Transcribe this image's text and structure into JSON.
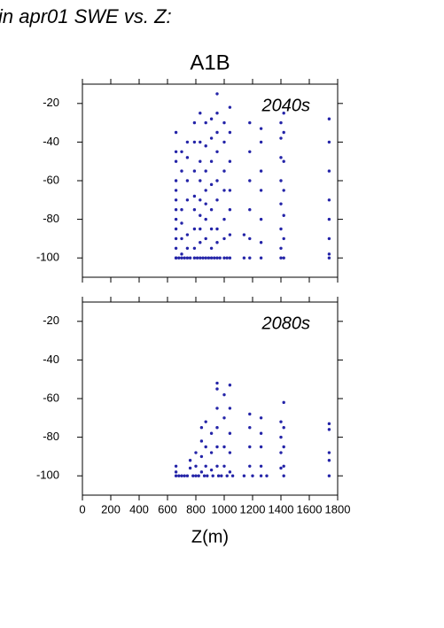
{
  "page_title": "in apr01 SWE vs. Z:",
  "chart_data": [
    {
      "type": "scatter",
      "title": "A1B",
      "annotation": "2040s",
      "color": "#2424a8",
      "xlim": [
        0,
        1800
      ],
      "xticks": [
        0,
        200,
        400,
        600,
        800,
        1000,
        1200,
        1400,
        1600,
        1800
      ],
      "ylim": [
        -110,
        -10
      ],
      "yticks": [
        -20,
        -40,
        -60,
        -80,
        -100
      ],
      "x": [
        660,
        660,
        660,
        660,
        660,
        660,
        660,
        660,
        660,
        660,
        660,
        660,
        660,
        700,
        700,
        700,
        700,
        700,
        700,
        700,
        740,
        740,
        740,
        740,
        740,
        740,
        740,
        790,
        790,
        790,
        790,
        790,
        790,
        790,
        790,
        830,
        830,
        830,
        830,
        830,
        830,
        830,
        830,
        830,
        870,
        870,
        870,
        870,
        870,
        870,
        870,
        870,
        910,
        910,
        910,
        910,
        910,
        910,
        910,
        910,
        950,
        950,
        950,
        950,
        950,
        950,
        950,
        950,
        950,
        1000,
        1000,
        1000,
        1000,
        1000,
        1000,
        1000,
        1040,
        1040,
        1040,
        1040,
        1040,
        1040,
        1040,
        1140,
        1140,
        1180,
        1180,
        1180,
        1180,
        1180,
        1180,
        1260,
        1260,
        1260,
        1260,
        1260,
        1260,
        1260,
        1400,
        1400,
        1400,
        1400,
        1400,
        1400,
        1400,
        1400,
        1420,
        1420,
        1420,
        1420,
        1420,
        1420,
        1420,
        1740,
        1740,
        1740,
        1740,
        1740,
        1740,
        1740,
        1740,
        680,
        720,
        760,
        810,
        850,
        890,
        930,
        970,
        1020
      ],
      "y": [
        -100,
        -100,
        -95,
        -90,
        -85,
        -80,
        -75,
        -70,
        -65,
        -60,
        -50,
        -45,
        -35,
        -100,
        -98,
        -90,
        -82,
        -75,
        -55,
        -45,
        -100,
        -95,
        -88,
        -70,
        -60,
        -48,
        -40,
        -100,
        -95,
        -85,
        -75,
        -68,
        -55,
        -40,
        -30,
        -100,
        -92,
        -85,
        -78,
        -70,
        -60,
        -50,
        -40,
        -25,
        -100,
        -90,
        -80,
        -72,
        -65,
        -55,
        -42,
        -30,
        -100,
        -95,
        -85,
        -75,
        -62,
        -50,
        -38,
        -28,
        -100,
        -92,
        -85,
        -70,
        -60,
        -45,
        -35,
        -25,
        -15,
        -100,
        -90,
        -80,
        -65,
        -55,
        -40,
        -30,
        -100,
        -88,
        -75,
        -65,
        -50,
        -35,
        -22,
        -100,
        -88,
        -100,
        -90,
        -75,
        -60,
        -45,
        -30,
        -100,
        -92,
        -80,
        -65,
        -55,
        -40,
        -33,
        -100,
        -95,
        -85,
        -72,
        -60,
        -48,
        -38,
        -30,
        -100,
        -90,
        -78,
        -65,
        -50,
        -35,
        -25,
        -100,
        -98,
        -90,
        -80,
        -70,
        -55,
        -40,
        -28,
        -100,
        -100,
        -100,
        -100,
        -100,
        -100,
        -100,
        -100,
        -100
      ]
    },
    {
      "type": "scatter",
      "annotation": "2080s",
      "xlabel": "Z(m)",
      "color": "#2424a8",
      "xlim": [
        0,
        1800
      ],
      "xticks": [
        0,
        200,
        400,
        600,
        800,
        1000,
        1200,
        1400,
        1600,
        1800
      ],
      "ylim": [
        -110,
        -10
      ],
      "yticks": [
        -20,
        -40,
        -60,
        -80,
        -100
      ],
      "x": [
        660,
        660,
        660,
        760,
        760,
        800,
        800,
        800,
        840,
        840,
        840,
        840,
        870,
        870,
        870,
        910,
        910,
        910,
        950,
        950,
        950,
        950,
        950,
        950,
        1000,
        1000,
        1000,
        1000,
        1040,
        1040,
        1040,
        1040,
        1040,
        1180,
        1180,
        1180,
        1180,
        1260,
        1260,
        1260,
        1260,
        1400,
        1400,
        1400,
        1400,
        1420,
        1420,
        1420,
        1420,
        1740,
        1740,
        1740,
        1740,
        1740,
        680,
        700,
        720,
        740,
        780,
        820,
        860,
        880,
        920,
        960,
        980,
        1020,
        1060,
        1140,
        1200,
        1260,
        1300,
        1420
      ],
      "y": [
        -100,
        -98,
        -95,
        -96,
        -92,
        -100,
        -95,
        -88,
        -98,
        -90,
        -82,
        -75,
        -95,
        -85,
        -72,
        -97,
        -88,
        -78,
        -95,
        -85,
        -75,
        -65,
        -55,
        -52,
        -95,
        -85,
        -70,
        -58,
        -98,
        -88,
        -78,
        -65,
        -53,
        -95,
        -85,
        -75,
        -68,
        -95,
        -85,
        -78,
        -70,
        -96,
        -88,
        -80,
        -72,
        -95,
        -85,
        -75,
        -62,
        -100,
        -92,
        -88,
        -76,
        -73,
        -100,
        -100,
        -100,
        -100,
        -100,
        -100,
        -100,
        -100,
        -100,
        -100,
        -100,
        -100,
        -100,
        -100,
        -100,
        -100,
        -100,
        -100
      ]
    }
  ]
}
